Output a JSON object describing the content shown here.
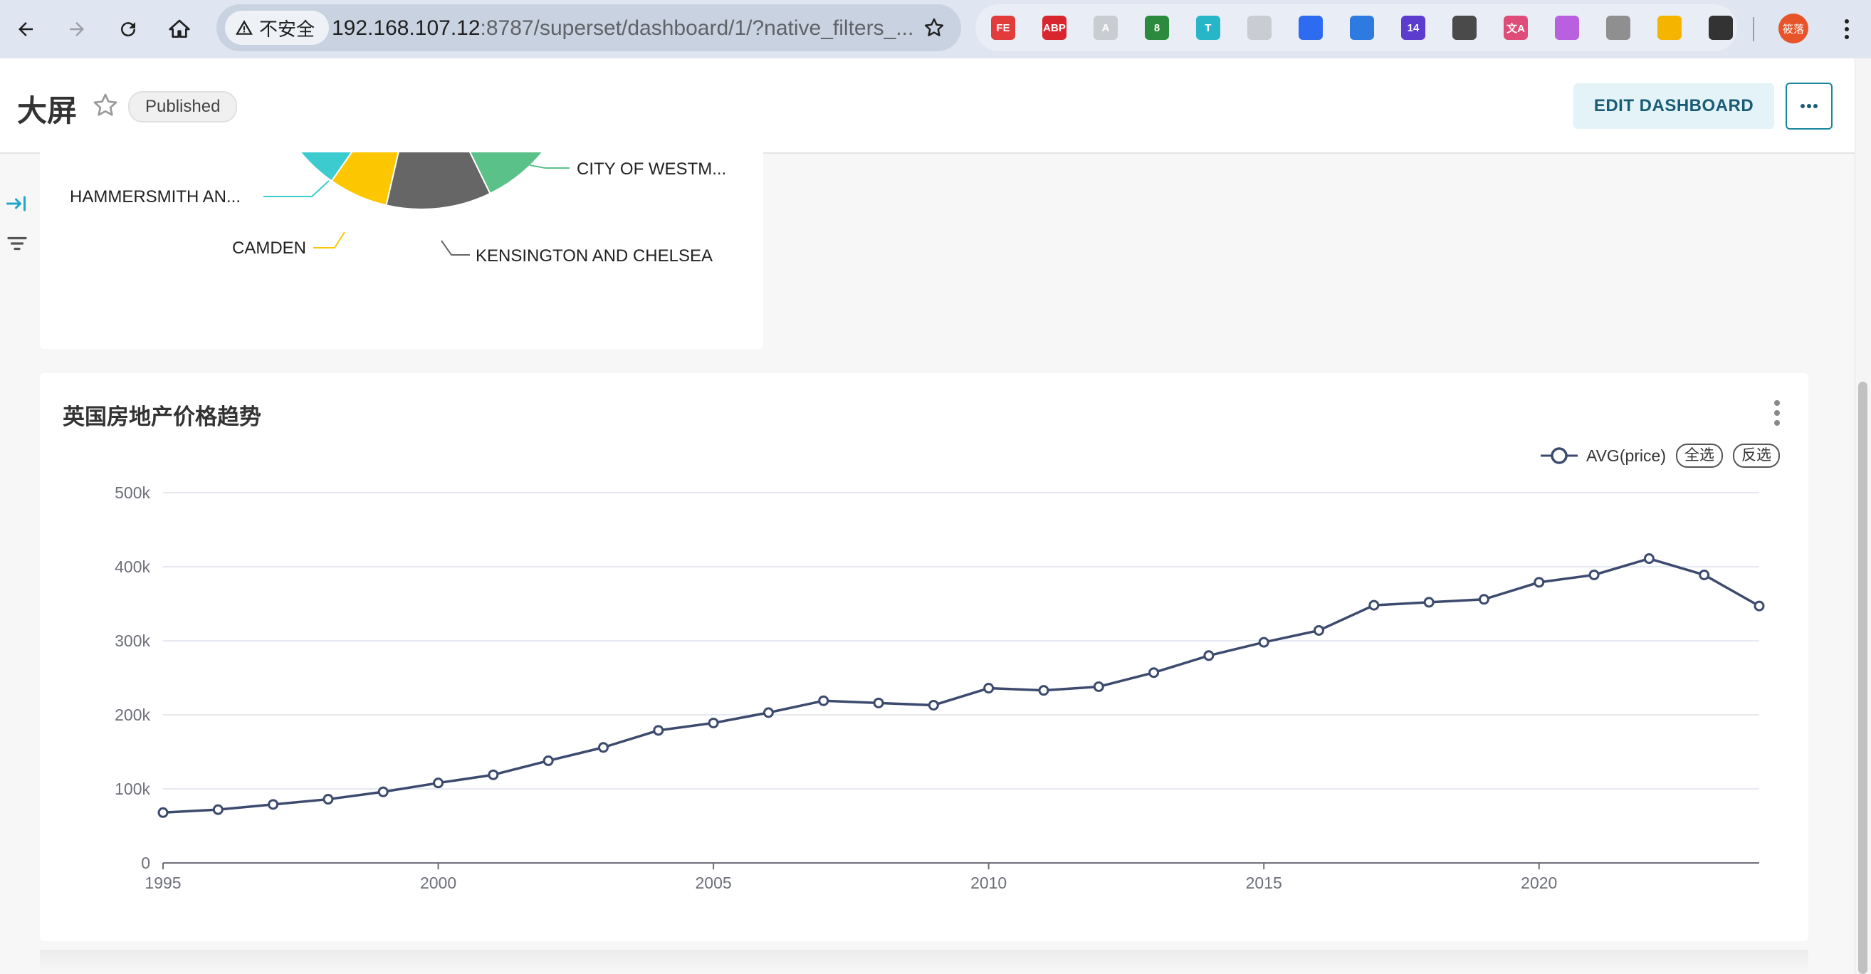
{
  "browser": {
    "security_label": "不安全",
    "url_host": "192.168.107.12",
    "url_rest": ":8787/superset/dashboard/1/?native_filters_...",
    "extensions": [
      {
        "name": "fe-extension-icon",
        "label": "FE",
        "color": "#e23b3b"
      },
      {
        "name": "adblock-icon",
        "label": "ABP",
        "color": "#d9262e"
      },
      {
        "name": "artifact-extension-icon",
        "label": "A",
        "color": "#c9ccd1"
      },
      {
        "name": "recycle-extension-icon",
        "label": "8",
        "color": "#2b8a3e"
      },
      {
        "name": "translate-t-icon",
        "label": "T",
        "color": "#27b6c8"
      },
      {
        "name": "reader-extension-icon",
        "label": "",
        "color": "#c9ccd1"
      },
      {
        "name": "dropbox-extension-icon",
        "label": "",
        "color": "#2d6cf0"
      },
      {
        "name": "download-extension-icon",
        "label": "",
        "color": "#2d7be0"
      },
      {
        "name": "graduation-extension-icon",
        "label": "14",
        "color": "#5b3ccf"
      },
      {
        "name": "list-extension-icon",
        "label": "",
        "color": "#4a4a4a"
      },
      {
        "name": "translate-extension-icon",
        "label": "文A",
        "color": "#e04c7a"
      },
      {
        "name": "brain-extension-icon",
        "label": "",
        "color": "#b860e0"
      },
      {
        "name": "circle-extension-icon",
        "label": "",
        "color": "#8f8f8f"
      },
      {
        "name": "color-extension-icon",
        "label": "",
        "color": "#f4b400"
      },
      {
        "name": "puzzle-extensions-icon",
        "label": "",
        "color": "#333333"
      }
    ],
    "profile_label": "筱落"
  },
  "header": {
    "title": "大屏",
    "status_badge": "Published",
    "edit_button": "EDIT DASHBOARD"
  },
  "pie_chart": {
    "labels": {
      "hammersmith": "HAMMERSMITH AN...",
      "camden": "CAMDEN",
      "kensington": "KENSINGTON AND CHELSEA",
      "westminster": "CITY OF WESTM..."
    },
    "colors": {
      "hammersmith": "#3ccbcf",
      "camden": "#fcc700",
      "kensington": "#666666",
      "westminster": "#5ac189"
    }
  },
  "line_card": {
    "title": "英国房地产价格趋势",
    "legend_select_all": "全选",
    "legend_invert": "反选"
  },
  "chart_data": {
    "type": "line",
    "x": [
      1995,
      1996,
      1997,
      1998,
      1999,
      2000,
      2001,
      2002,
      2003,
      2004,
      2005,
      2006,
      2007,
      2008,
      2009,
      2010,
      2011,
      2012,
      2013,
      2014,
      2015,
      2016,
      2017,
      2018,
      2019,
      2020,
      2021,
      2022,
      2023,
      2024
    ],
    "series": [
      {
        "name": "AVG(price)",
        "color": "#3c4a6e",
        "values": [
          68000,
          72000,
          79000,
          86000,
          96000,
          108000,
          119000,
          138000,
          156000,
          179000,
          189000,
          203000,
          219000,
          216000,
          213000,
          236000,
          233000,
          238000,
          257000,
          280000,
          298000,
          314000,
          348000,
          352000,
          356000,
          379000,
          389000,
          411000,
          389000,
          347000
        ]
      }
    ],
    "yticks": [
      "0",
      "100k",
      "200k",
      "300k",
      "400k",
      "500k"
    ],
    "xticks": [
      "1995",
      "2000",
      "2005",
      "2010",
      "2015",
      "2020"
    ],
    "ylim": [
      0,
      500000
    ],
    "xlim": [
      1995,
      2024
    ],
    "grid": true,
    "legend_position": "top-right"
  }
}
